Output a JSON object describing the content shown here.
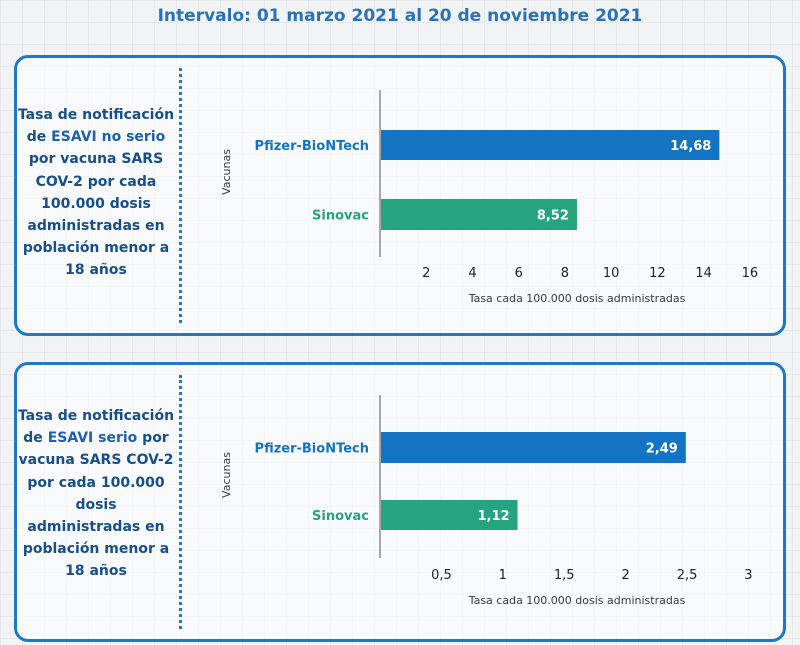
{
  "title": "Intervalo: 01 marzo 2021 al 20 de noviembre 2021",
  "colors": {
    "pfizer": "#1474c4",
    "sinovac": "#25a47f",
    "accent": "#1e78c6"
  },
  "panels": [
    {
      "desc_before": "Tasa de notificación de",
      "desc_em": "ESAVI no serio",
      "desc_after": "por vacuna SARS COV-2 por cada 100.000 dosis administradas en población menor a 18 años"
    },
    {
      "desc_before": "Tasa de notificación de",
      "desc_em": "ESAVI serio",
      "desc_after": "por vacuna SARS COV-2 por cada 100.000 dosis administradas en población menor a 18 años"
    }
  ],
  "chart_data": [
    {
      "type": "bar",
      "orientation": "horizontal",
      "categories": [
        "Pfizer-BioNTech",
        "Sinovac"
      ],
      "values": [
        14.68,
        8.52
      ],
      "value_labels": [
        "14,68",
        "8,52"
      ],
      "ylabel": "Vacunas",
      "xlabel": "Tasa cada 100.000 dosis administradas",
      "xlim": [
        0,
        17
      ],
      "ticks": [
        2,
        4,
        6,
        8,
        10,
        12,
        14,
        16
      ],
      "tick_labels": [
        "2",
        "4",
        "6",
        "8",
        "10",
        "12",
        "14",
        "16"
      ]
    },
    {
      "type": "bar",
      "orientation": "horizontal",
      "categories": [
        "Pfizer-BioNTech",
        "Sinovac"
      ],
      "values": [
        2.49,
        1.12
      ],
      "value_labels": [
        "2,49",
        "1,12"
      ],
      "ylabel": "Vacunas",
      "xlabel": "Tasa cada 100.000 dosis administradas",
      "xlim": [
        0,
        3.2
      ],
      "ticks": [
        0.5,
        1,
        1.5,
        2,
        2.5,
        3
      ],
      "tick_labels": [
        "0,5",
        "1",
        "1,5",
        "2",
        "2,5",
        "3"
      ]
    }
  ]
}
